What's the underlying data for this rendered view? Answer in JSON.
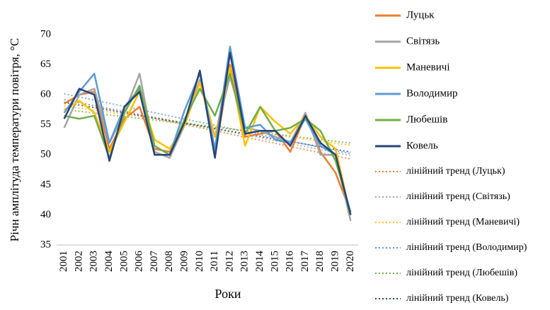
{
  "chart_data": {
    "type": "line",
    "x_label": "Роки",
    "y_label": "Річн амплітуда температури повітря, °C",
    "categories": [
      "2001",
      "2002",
      "2003",
      "2004",
      "2005",
      "2006",
      "2007",
      "2008",
      "2009",
      "2010",
      "2011",
      "2012",
      "2013",
      "2014",
      "2015",
      "2016",
      "2017",
      "2018",
      "2019",
      "2020"
    ],
    "ylim": [
      35,
      70
    ],
    "yticks": [
      35,
      40,
      45,
      50,
      55,
      60,
      65,
      70
    ],
    "series": [
      {
        "name": "Луцьк",
        "color": "#ed7d31",
        "trend_name": "лінійний тренд (Луцьк)",
        "values": [
          58.5,
          60,
          60.5,
          51,
          56,
          58,
          51,
          50.5,
          55,
          64,
          50,
          65,
          53,
          53.5,
          54,
          50.5,
          56.5,
          50.5,
          47,
          40.5
        ]
      },
      {
        "name": "Світязь",
        "color": "#a5a5a5",
        "trend_name": "лінійний тренд (Світязь)",
        "values": [
          54.5,
          60,
          61,
          52,
          57,
          63.5,
          50.5,
          49.5,
          55,
          62.5,
          53,
          63,
          54.5,
          54,
          53,
          52,
          57,
          50,
          50,
          39
        ]
      },
      {
        "name": "Маневичі",
        "color": "#ffc000",
        "trend_name": "лінійний тренд (Маневичі)",
        "values": [
          57.5,
          59,
          57,
          50.5,
          55.5,
          60.5,
          52.5,
          51,
          55,
          62,
          53,
          64.5,
          51.5,
          58,
          55.5,
          53.5,
          56.5,
          53,
          51,
          40
        ]
      },
      {
        "name": "Володимир",
        "color": "#5b9bd5",
        "trend_name": "лінійний тренд (Володимир)",
        "values": [
          57,
          60.5,
          63.5,
          52,
          58,
          61,
          50,
          50,
          57.5,
          63.5,
          51,
          68,
          54.5,
          55,
          52.5,
          52,
          56,
          51.5,
          50,
          40
        ]
      },
      {
        "name": "Любешів",
        "color": "#70ad47",
        "trend_name": "лінійний тренд (Любешів)",
        "values": [
          56.5,
          56,
          56.5,
          49.5,
          57,
          61.5,
          51.5,
          50,
          56,
          61,
          56.5,
          63.5,
          53.5,
          58,
          54,
          54.5,
          56,
          54,
          49,
          40.5
        ]
      },
      {
        "name": "Ковель",
        "color": "#264478",
        "trend_name": "лінійний тренд (Ковель)",
        "values": [
          56,
          61,
          60,
          49,
          58,
          60.5,
          50,
          50,
          55.5,
          64,
          49.5,
          67,
          53.5,
          54,
          54,
          51.5,
          56.5,
          52,
          50,
          40
        ]
      }
    ]
  }
}
